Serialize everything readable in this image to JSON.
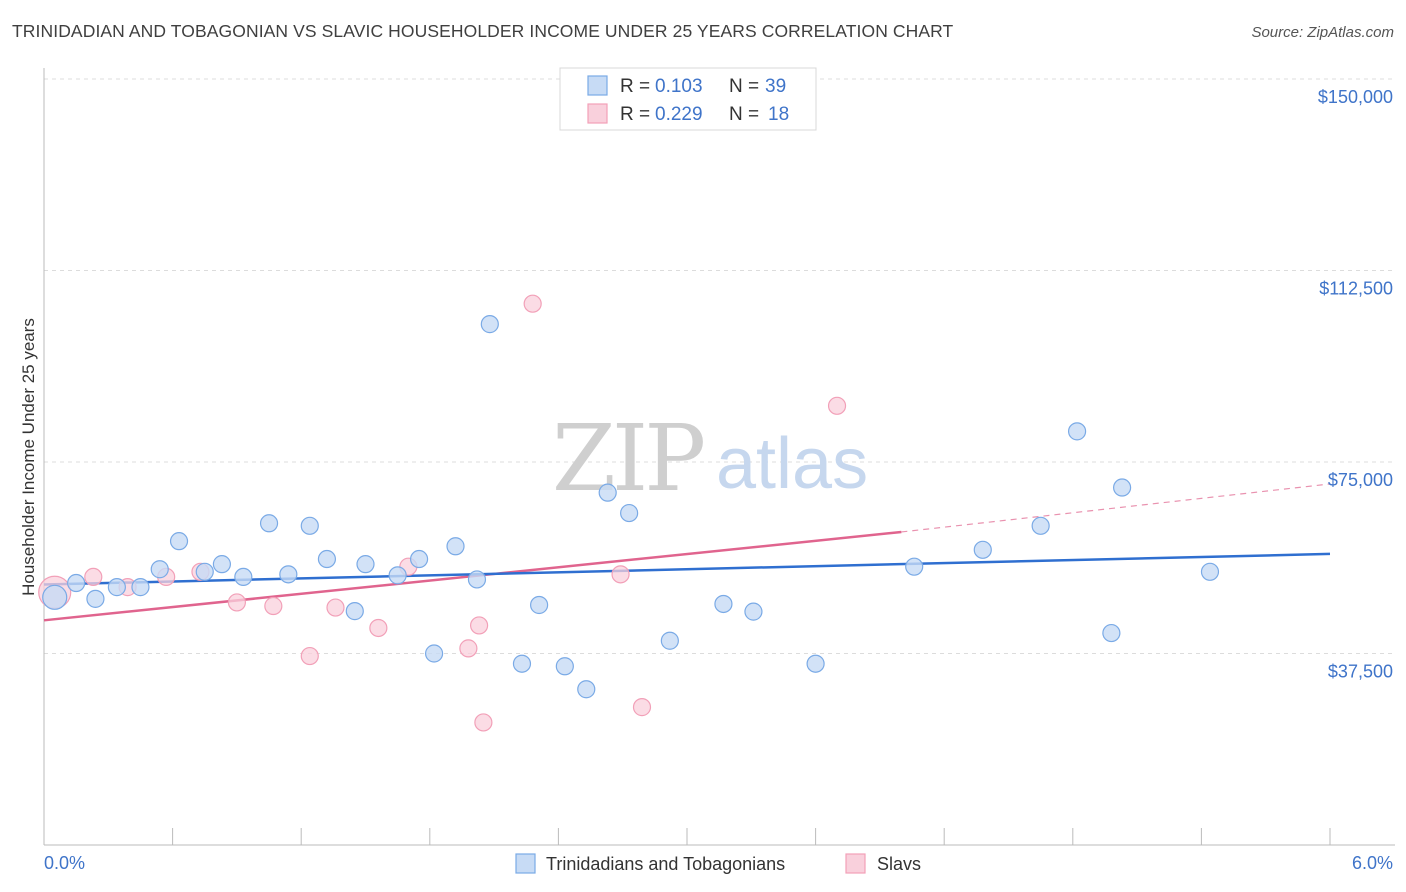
{
  "header": {
    "title": "TRINIDADIAN AND TOBAGONIAN VS SLAVIC HOUSEHOLDER INCOME UNDER 25 YEARS CORRELATION CHART",
    "source": "Source: ZipAtlas.com"
  },
  "watermark": {
    "part1": "ZIP",
    "part2": "atlas"
  },
  "legend_top": [
    {
      "r_label": "R =",
      "r_value": "0.103",
      "n_label": "N =",
      "n_value": "39",
      "color": "#7aaae6"
    },
    {
      "r_label": "R =",
      "r_value": "0.229",
      "n_label": "N =",
      "n_value": "18",
      "color": "#f2a0b8"
    }
  ],
  "legend_bottom": [
    {
      "label": "Trinidadians and Tobagonians",
      "color": "#7aaae6"
    },
    {
      "label": "Slavs",
      "color": "#f2a0b8"
    }
  ],
  "colors": {
    "blue_fill": "#c7dbf5",
    "blue_stroke": "#7aaae6",
    "blue_line": "#2f6fd0",
    "pink_fill": "#f9d0dc",
    "pink_stroke": "#f2a0b8",
    "pink_line": "#e0648e",
    "grid": "#dcdcdc",
    "tick_label": "#3f74c9"
  },
  "chart_data": {
    "type": "scatter",
    "title": "TRINIDADIAN AND TOBAGONIAN VS SLAVIC HOUSEHOLDER INCOME UNDER 25 YEARS CORRELATION CHART",
    "xlabel": "",
    "ylabel": "Householder Income Under 25 years",
    "xlim": [
      0,
      6.0
    ],
    "ylim": [
      0,
      150000
    ],
    "x_tick_labels": [
      "0.0%",
      "6.0%"
    ],
    "y_ticks": [
      37500,
      75000,
      112500,
      150000
    ],
    "y_tick_labels": [
      "$37,500",
      "$75,000",
      "$112,500",
      "$150,000"
    ],
    "grid": true,
    "legend_position": "top-center",
    "series": [
      {
        "name": "Trinidadians and Tobagonians",
        "r": 0.103,
        "n": 39,
        "trend": {
          "x": [
            0.0,
            6.0
          ],
          "y": [
            51000,
            57000
          ]
        },
        "points": [
          [
            0.05,
            48500
          ],
          [
            0.15,
            51300
          ],
          [
            0.24,
            48200
          ],
          [
            0.34,
            50500
          ],
          [
            0.45,
            50500
          ],
          [
            0.54,
            54000
          ],
          [
            0.63,
            59500
          ],
          [
            0.75,
            53500
          ],
          [
            0.83,
            55000
          ],
          [
            0.93,
            52500
          ],
          [
            1.05,
            63000
          ],
          [
            1.14,
            53000
          ],
          [
            1.24,
            62500
          ],
          [
            1.32,
            56000
          ],
          [
            1.45,
            45800
          ],
          [
            1.5,
            55000
          ],
          [
            1.65,
            52800
          ],
          [
            1.75,
            56000
          ],
          [
            1.82,
            37500
          ],
          [
            1.92,
            58500
          ],
          [
            2.02,
            52000
          ],
          [
            2.08,
            102000
          ],
          [
            2.23,
            35500
          ],
          [
            2.31,
            47000
          ],
          [
            2.43,
            35000
          ],
          [
            2.53,
            30500
          ],
          [
            2.63,
            69000
          ],
          [
            2.73,
            65000
          ],
          [
            2.92,
            40000
          ],
          [
            3.17,
            47200
          ],
          [
            3.31,
            45700
          ],
          [
            3.6,
            35500
          ],
          [
            4.06,
            54500
          ],
          [
            4.38,
            57800
          ],
          [
            4.65,
            62500
          ],
          [
            4.82,
            81000
          ],
          [
            4.98,
            41500
          ],
          [
            5.03,
            70000
          ],
          [
            5.44,
            53500
          ]
        ]
      },
      {
        "name": "Slavs",
        "r": 0.229,
        "n": 18,
        "trend": {
          "x": [
            0.0,
            4.0
          ],
          "y": [
            44000,
            61300
          ]
        },
        "trend_extension": {
          "x": [
            4.0,
            6.0
          ],
          "y": [
            61300,
            70700
          ]
        },
        "points": [
          [
            0.05,
            49500
          ],
          [
            0.23,
            52500
          ],
          [
            0.39,
            50500
          ],
          [
            0.57,
            52500
          ],
          [
            0.73,
            53500
          ],
          [
            0.9,
            47500
          ],
          [
            1.07,
            46800
          ],
          [
            1.24,
            37000
          ],
          [
            1.36,
            46500
          ],
          [
            1.56,
            42500
          ],
          [
            1.7,
            54500
          ],
          [
            1.98,
            38500
          ],
          [
            2.03,
            43000
          ],
          [
            2.05,
            24000
          ],
          [
            2.28,
            106000
          ],
          [
            2.69,
            53000
          ],
          [
            2.79,
            27000
          ],
          [
            3.7,
            86000
          ]
        ]
      }
    ]
  }
}
